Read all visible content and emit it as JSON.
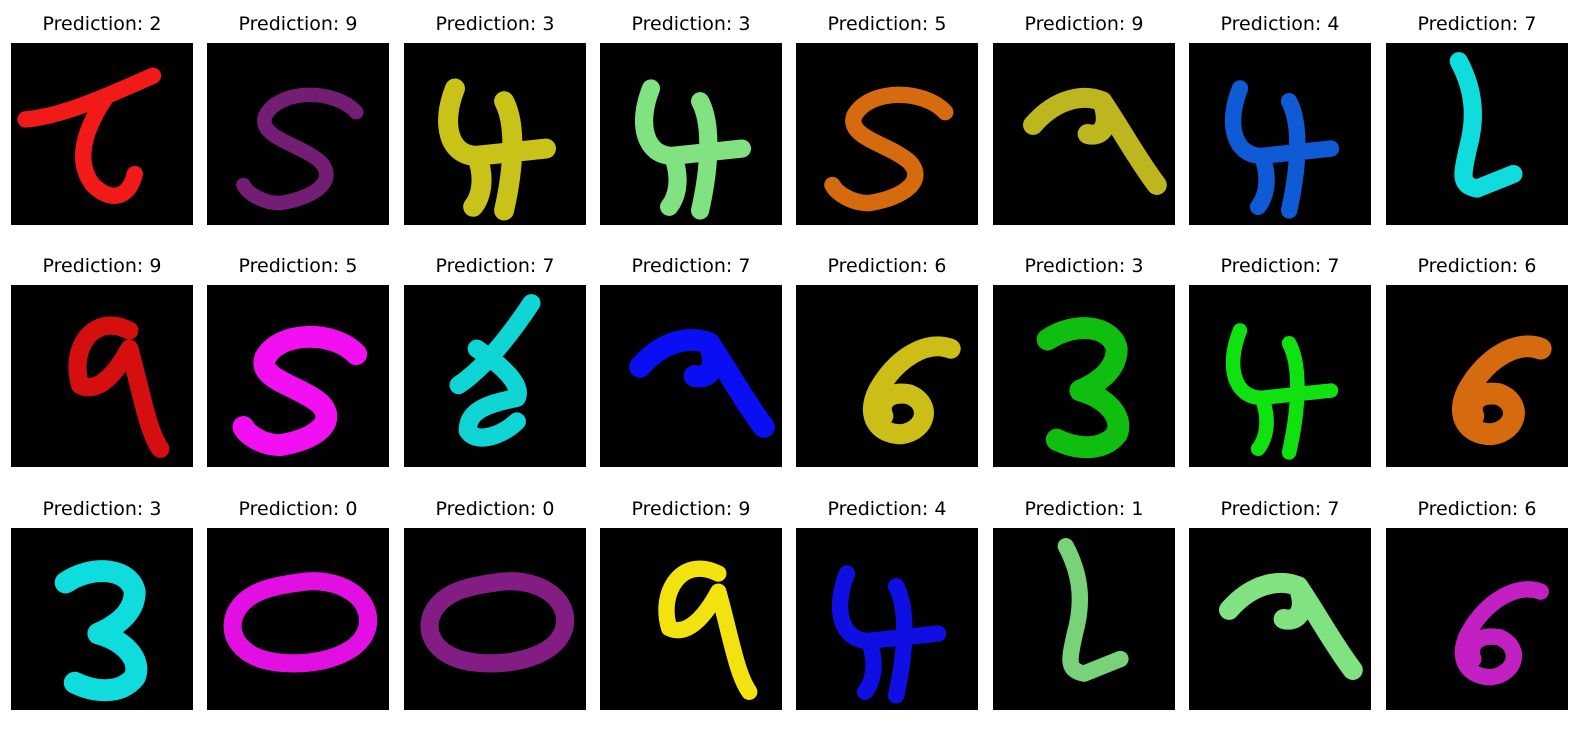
{
  "grid": {
    "caption_prefix": "Prediction: ",
    "rows": 3,
    "cols": 8,
    "samples": [
      {
        "prediction": "2",
        "color": "#ff1a1a",
        "shape": "digit-2-icon"
      },
      {
        "prediction": "9",
        "color": "#7a1f7a",
        "shape": "digit-5-icon"
      },
      {
        "prediction": "3",
        "color": "#d4cc1a",
        "shape": "digit-4-icon"
      },
      {
        "prediction": "3",
        "color": "#88ee88",
        "shape": "digit-4-icon"
      },
      {
        "prediction": "5",
        "color": "#e07010",
        "shape": "digit-5-icon"
      },
      {
        "prediction": "9",
        "color": "#c8c020",
        "shape": "digit-7-icon"
      },
      {
        "prediction": "4",
        "color": "#1060e0",
        "shape": "digit-4-icon"
      },
      {
        "prediction": "7",
        "color": "#10e8e8",
        "shape": "digit-1-icon"
      },
      {
        "prediction": "9",
        "color": "#e01010",
        "shape": "digit-9-icon"
      },
      {
        "prediction": "5",
        "color": "#ff10ff",
        "shape": "digit-5-icon"
      },
      {
        "prediction": "7",
        "color": "#10e0e0",
        "shape": "digit-8-icon"
      },
      {
        "prediction": "7",
        "color": "#0a10ff",
        "shape": "digit-7-icon"
      },
      {
        "prediction": "6",
        "color": "#d8c818",
        "shape": "digit-6-icon"
      },
      {
        "prediction": "3",
        "color": "#10c810",
        "shape": "digit-3-icon"
      },
      {
        "prediction": "7",
        "color": "#10ee10",
        "shape": "digit-4-icon"
      },
      {
        "prediction": "6",
        "color": "#e07010",
        "shape": "digit-6-icon"
      },
      {
        "prediction": "3",
        "color": "#10e8e8",
        "shape": "digit-3-icon"
      },
      {
        "prediction": "0",
        "color": "#ee10ee",
        "shape": "digit-0-icon"
      },
      {
        "prediction": "0",
        "color": "#8a1f8a",
        "shape": "digit-0-icon"
      },
      {
        "prediction": "9",
        "color": "#ffee10",
        "shape": "digit-9-icon"
      },
      {
        "prediction": "4",
        "color": "#1010f0",
        "shape": "digit-4-icon"
      },
      {
        "prediction": "1",
        "color": "#80dd80",
        "shape": "digit-1-icon"
      },
      {
        "prediction": "7",
        "color": "#88ee88",
        "shape": "digit-7-icon"
      },
      {
        "prediction": "6",
        "color": "#cc22cc",
        "shape": "digit-6-icon"
      }
    ]
  }
}
